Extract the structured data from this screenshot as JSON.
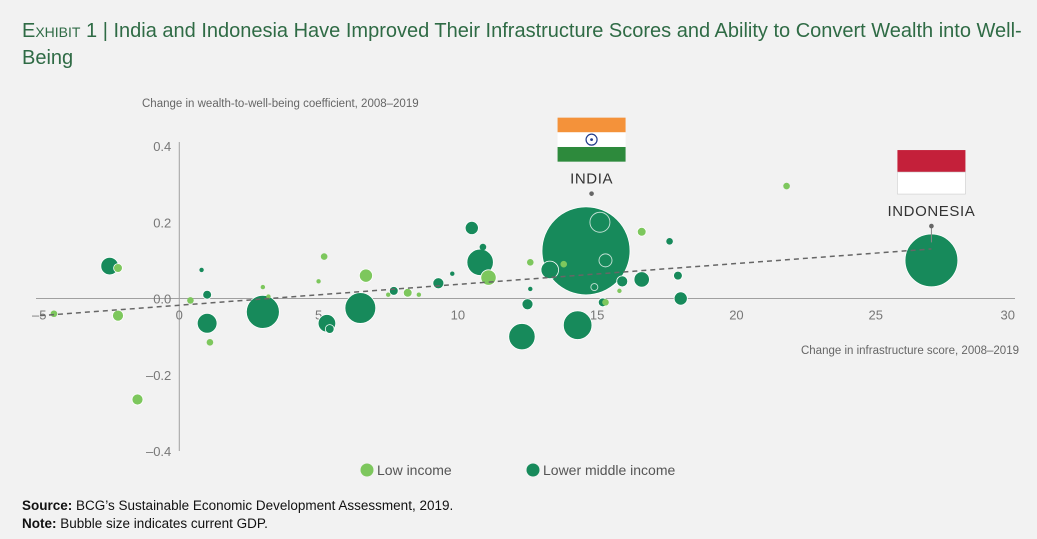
{
  "title": {
    "exhibit": "Exhibit 1",
    "separator": "|",
    "text": "India and Indonesia Have Improved Their Infrastructure Scores and Ability to Convert Wealth into Well-Being"
  },
  "footer": {
    "source_label": "Source:",
    "source_text": "BCG’s Sustainable Economic Development Assessment, 2019.",
    "note_label": "Note:",
    "note_text": "Bubble size indicates current GDP."
  },
  "colors": {
    "background": "#f2f2f2",
    "low_income": "#7dc75d",
    "lower_middle_income": "#178a5b",
    "trendline": "#666666",
    "axis": "#a0a0a0",
    "title": "#2f6b45"
  },
  "chart_data": {
    "type": "scatter",
    "title": "",
    "xlabel": "Change in infrastructure score, 2008–2019",
    "ylabel": "Change in wealth-to-well-being coefficient, 2008–2019",
    "xlim": [
      -5,
      30
    ],
    "ylim": [
      -0.4,
      0.4
    ],
    "xticks": [
      "–5",
      "0",
      "5",
      "10",
      "15",
      "20",
      "25",
      "30"
    ],
    "xtick_values": [
      -5,
      0,
      5,
      10,
      15,
      20,
      25,
      30
    ],
    "yticks": [
      "0.4",
      "0.2",
      "0.0",
      "–0.2",
      "–0.4"
    ],
    "ytick_values": [
      0.4,
      0.2,
      0.0,
      -0.2,
      -0.4
    ],
    "grid": false,
    "legend_position": "bottom",
    "size_encoding": "current GDP (relative)",
    "trendline": {
      "x": [
        -5,
        27
      ],
      "y": [
        -0.045,
        0.13
      ]
    },
    "series": [
      {
        "name": "Low income",
        "color": "#7dc75d",
        "points": [
          {
            "x": -4.5,
            "y": -0.04,
            "size": 3
          },
          {
            "x": -2.2,
            "y": 0.08,
            "size": 4
          },
          {
            "x": -2.2,
            "y": -0.045,
            "size": 5
          },
          {
            "x": -1.5,
            "y": -0.265,
            "size": 5
          },
          {
            "x": 0.4,
            "y": -0.005,
            "size": 3
          },
          {
            "x": 1.1,
            "y": -0.115,
            "size": 3
          },
          {
            "x": 3.0,
            "y": 0.03,
            "size": 2
          },
          {
            "x": 3.2,
            "y": 0.005,
            "size": 2
          },
          {
            "x": 5.0,
            "y": 0.045,
            "size": 2
          },
          {
            "x": 5.2,
            "y": 0.11,
            "size": 3
          },
          {
            "x": 6.7,
            "y": 0.06,
            "size": 6
          },
          {
            "x": 7.5,
            "y": 0.01,
            "size": 2
          },
          {
            "x": 8.2,
            "y": 0.015,
            "size": 4
          },
          {
            "x": 8.6,
            "y": 0.01,
            "size": 2
          },
          {
            "x": 11.1,
            "y": 0.055,
            "size": 7
          },
          {
            "x": 12.6,
            "y": 0.095,
            "size": 3
          },
          {
            "x": 13.8,
            "y": 0.09,
            "size": 3
          },
          {
            "x": 15.3,
            "y": -0.01,
            "size": 3
          },
          {
            "x": 15.8,
            "y": 0.02,
            "size": 2
          },
          {
            "x": 16.6,
            "y": 0.175,
            "size": 4
          },
          {
            "x": 21.8,
            "y": 0.295,
            "size": 3
          }
        ]
      },
      {
        "name": "Lower middle income",
        "color": "#178a5b",
        "points": [
          {
            "x": -2.5,
            "y": 0.085,
            "size": 8
          },
          {
            "x": 1.0,
            "y": 0.01,
            "size": 4
          },
          {
            "x": 1.0,
            "y": -0.065,
            "size": 9
          },
          {
            "x": 0.8,
            "y": 0.075,
            "size": 2
          },
          {
            "x": 3.0,
            "y": -0.035,
            "size": 15
          },
          {
            "x": 5.3,
            "y": -0.065,
            "size": 8
          },
          {
            "x": 5.4,
            "y": -0.08,
            "size": 4
          },
          {
            "x": 6.5,
            "y": -0.025,
            "size": 14
          },
          {
            "x": 7.7,
            "y": 0.02,
            "size": 4
          },
          {
            "x": 9.3,
            "y": 0.04,
            "size": 5
          },
          {
            "x": 9.8,
            "y": 0.065,
            "size": 2
          },
          {
            "x": 10.5,
            "y": 0.185,
            "size": 6
          },
          {
            "x": 10.8,
            "y": 0.095,
            "size": 12
          },
          {
            "x": 10.9,
            "y": 0.135,
            "size": 3
          },
          {
            "x": 12.3,
            "y": -0.1,
            "size": 12
          },
          {
            "x": 12.5,
            "y": -0.015,
            "size": 5
          },
          {
            "x": 12.6,
            "y": 0.025,
            "size": 2
          },
          {
            "x": 13.3,
            "y": 0.075,
            "size": 8
          },
          {
            "x": 14.3,
            "y": -0.07,
            "size": 13
          },
          {
            "x": 14.6,
            "y": 0.125,
            "size": 40
          },
          {
            "x": 15.2,
            "y": -0.01,
            "size": 4
          },
          {
            "x": 15.9,
            "y": 0.045,
            "size": 5
          },
          {
            "x": 16.6,
            "y": 0.05,
            "size": 7
          },
          {
            "x": 17.6,
            "y": 0.15,
            "size": 3
          },
          {
            "x": 17.9,
            "y": 0.06,
            "size": 4
          },
          {
            "x": 18.0,
            "y": 0.0,
            "size": 6
          },
          {
            "x": 27.0,
            "y": 0.1,
            "size": 24
          }
        ]
      }
    ],
    "annotations": [
      {
        "label": "INDIA",
        "x": 14.8,
        "y": 0.125,
        "marker_y": 0.275,
        "flag": "india"
      },
      {
        "label": "INDONESIA",
        "x": 27.0,
        "y": 0.1,
        "marker_y": 0.19,
        "flag": "indonesia"
      }
    ],
    "legend": [
      {
        "label": "Low income",
        "color": "#7dc75d"
      },
      {
        "label": "Lower middle income",
        "color": "#178a5b"
      }
    ]
  }
}
